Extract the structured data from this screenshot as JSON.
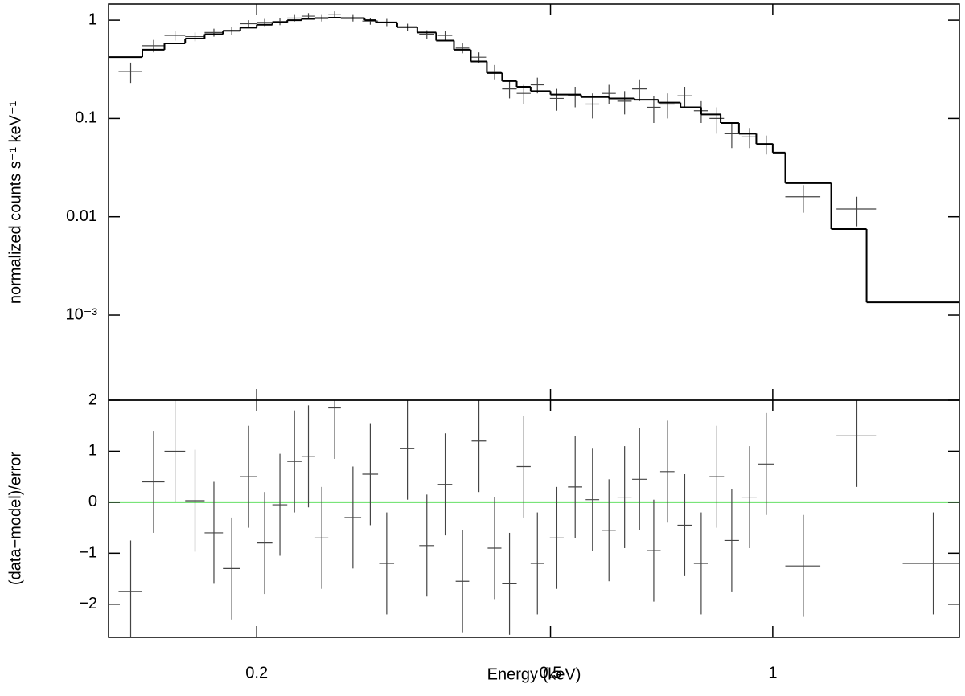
{
  "chart_data": [
    {
      "type": "errorbar",
      "ylabel": "normalized counts s⁻¹ keV⁻¹",
      "log_x": true,
      "log_y": true,
      "xlim": [
        0.126,
        1.79
      ],
      "ylim": [
        0.000136,
        1.46
      ],
      "yticks": [
        1,
        0.1,
        0.01,
        {
          "value": 0.001,
          "label": "10⁻³"
        }
      ],
      "series": [
        {
          "name": "data",
          "color": "#444444",
          "x": [
            0.135,
            0.145,
            0.155,
            0.165,
            0.175,
            0.185,
            0.195,
            0.205,
            0.215,
            0.225,
            0.235,
            0.245,
            0.255,
            0.27,
            0.285,
            0.3,
            0.32,
            0.34,
            0.36,
            0.38,
            0.4,
            0.42,
            0.44,
            0.46,
            0.48,
            0.51,
            0.54,
            0.57,
            0.6,
            0.63,
            0.66,
            0.69,
            0.72,
            0.76,
            0.8,
            0.84,
            0.88,
            0.93,
            0.98,
            1.1,
            1.3
          ],
          "xerr": [
            0.005,
            0.005,
            0.005,
            0.005,
            0.005,
            0.005,
            0.005,
            0.005,
            0.005,
            0.005,
            0.005,
            0.005,
            0.005,
            0.007,
            0.007,
            0.007,
            0.007,
            0.008,
            0.008,
            0.008,
            0.009,
            0.009,
            0.01,
            0.01,
            0.01,
            0.011,
            0.012,
            0.012,
            0.013,
            0.014,
            0.015,
            0.015,
            0.016,
            0.017,
            0.018,
            0.019,
            0.02,
            0.021,
            0.025,
            0.06,
            0.08
          ],
          "values": [
            0.3,
            0.55,
            0.7,
            0.68,
            0.75,
            0.78,
            0.92,
            0.95,
            0.97,
            1.05,
            1.1,
            1.05,
            1.15,
            1.05,
            0.98,
            0.95,
            0.85,
            0.72,
            0.7,
            0.52,
            0.42,
            0.3,
            0.2,
            0.18,
            0.22,
            0.16,
            0.17,
            0.14,
            0.18,
            0.15,
            0.2,
            0.13,
            0.14,
            0.17,
            0.12,
            0.1,
            0.07,
            0.065,
            0.055,
            0.016,
            0.012
          ],
          "yerr": [
            0.07,
            0.08,
            0.08,
            0.07,
            0.07,
            0.07,
            0.08,
            0.08,
            0.08,
            0.08,
            0.08,
            0.08,
            0.08,
            0.08,
            0.08,
            0.08,
            0.07,
            0.07,
            0.07,
            0.06,
            0.05,
            0.05,
            0.04,
            0.04,
            0.04,
            0.04,
            0.04,
            0.04,
            0.04,
            0.04,
            0.05,
            0.04,
            0.04,
            0.04,
            0.03,
            0.03,
            0.02,
            0.015,
            0.012,
            0.005,
            0.004
          ]
        }
      ],
      "model": {
        "color": "#000000",
        "bins": [
          0.126,
          0.14,
          0.15,
          0.16,
          0.17,
          0.18,
          0.19,
          0.2,
          0.21,
          0.22,
          0.23,
          0.24,
          0.25,
          0.26,
          0.28,
          0.29,
          0.31,
          0.33,
          0.35,
          0.37,
          0.39,
          0.41,
          0.43,
          0.45,
          0.47,
          0.5,
          0.55,
          0.6,
          0.65,
          0.7,
          0.75,
          0.8,
          0.85,
          0.9,
          0.95,
          1.0,
          1.04,
          1.2,
          1.34,
          1.79
        ],
        "values": [
          0.42,
          0.5,
          0.58,
          0.65,
          0.72,
          0.78,
          0.84,
          0.9,
          0.95,
          1.0,
          1.03,
          1.05,
          1.06,
          1.05,
          1.0,
          0.95,
          0.85,
          0.75,
          0.62,
          0.5,
          0.38,
          0.29,
          0.24,
          0.21,
          0.19,
          0.175,
          0.165,
          0.16,
          0.155,
          0.145,
          0.13,
          0.11,
          0.09,
          0.07,
          0.055,
          0.045,
          0.022,
          0.0075,
          0.00135
        ]
      }
    },
    {
      "type": "errorbar",
      "ylabel": "(data−model)/error",
      "xlabel": "Energy (keV)",
      "log_x": true,
      "log_y": false,
      "xlim": [
        0.126,
        1.79
      ],
      "ylim": [
        -2.65,
        2
      ],
      "xticks": [
        0.2,
        0.5,
        1
      ],
      "yticks": [
        2,
        1,
        0,
        {
          "value": -1,
          "label": "−1"
        },
        {
          "value": -2,
          "label": "−2"
        }
      ],
      "hline": {
        "value": 0,
        "color": "#66e066"
      },
      "series": [
        {
          "name": "residuals",
          "color": "#444444",
          "x": [
            0.135,
            0.145,
            0.155,
            0.165,
            0.175,
            0.185,
            0.195,
            0.205,
            0.215,
            0.225,
            0.235,
            0.245,
            0.255,
            0.27,
            0.285,
            0.3,
            0.32,
            0.34,
            0.36,
            0.38,
            0.4,
            0.42,
            0.44,
            0.46,
            0.48,
            0.51,
            0.54,
            0.57,
            0.6,
            0.63,
            0.66,
            0.69,
            0.72,
            0.76,
            0.8,
            0.84,
            0.88,
            0.93,
            0.98,
            1.1,
            1.3,
            1.65
          ],
          "xerr": [
            0.005,
            0.005,
            0.005,
            0.005,
            0.005,
            0.005,
            0.005,
            0.005,
            0.005,
            0.005,
            0.005,
            0.005,
            0.005,
            0.007,
            0.007,
            0.007,
            0.007,
            0.008,
            0.008,
            0.008,
            0.009,
            0.009,
            0.01,
            0.01,
            0.01,
            0.011,
            0.012,
            0.012,
            0.013,
            0.014,
            0.015,
            0.015,
            0.016,
            0.017,
            0.018,
            0.019,
            0.02,
            0.021,
            0.025,
            0.06,
            0.08,
            0.15
          ],
          "values": [
            -1.75,
            0.4,
            1.0,
            0.03,
            -0.6,
            -1.3,
            0.5,
            -0.8,
            -0.05,
            0.8,
            0.9,
            -0.7,
            1.85,
            -0.3,
            0.55,
            -1.2,
            1.05,
            -0.85,
            0.35,
            -1.55,
            1.2,
            -0.9,
            -1.6,
            0.7,
            -1.2,
            -0.7,
            0.3,
            0.05,
            -0.55,
            0.1,
            0.45,
            -0.95,
            0.6,
            -0.45,
            -1.2,
            0.5,
            -0.75,
            0.1,
            0.75,
            -1.25,
            1.3,
            -1.2
          ],
          "yerr": [
            1,
            1,
            1,
            1,
            1,
            1,
            1,
            1,
            1,
            1,
            1,
            1,
            1,
            1,
            1,
            1,
            1,
            1,
            1,
            1,
            1,
            1,
            1,
            1,
            1,
            1,
            1,
            1,
            1,
            1,
            1,
            1,
            1,
            1,
            1,
            1,
            1,
            1,
            1,
            1,
            1,
            1
          ]
        }
      ]
    }
  ]
}
